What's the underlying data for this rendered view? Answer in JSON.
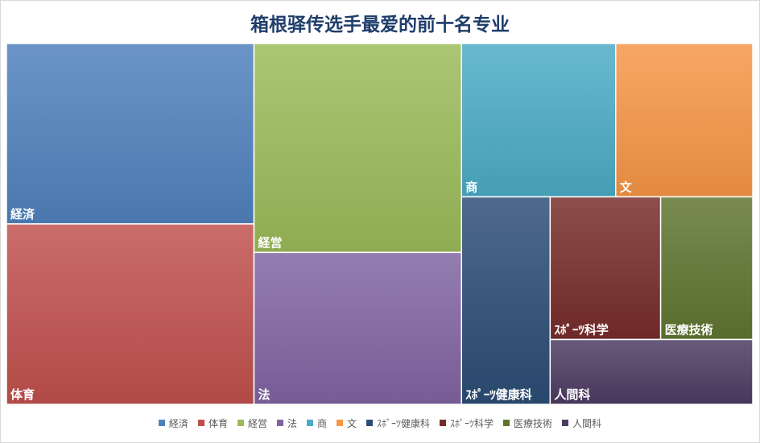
{
  "chart_data": {
    "type": "treemap",
    "title": "箱根驿传选手最爱的前十名专业",
    "categories": [
      "経済",
      "体育",
      "経営",
      "法",
      "商",
      "文",
      "ｽﾎﾟｰﾂ健康科",
      "ｽﾎﾟｰﾂ科学",
      "医療技術",
      "人間科"
    ],
    "values": [
      34,
      34,
      33,
      24,
      18,
      16,
      14,
      12,
      10,
      10
    ],
    "colors": [
      "#4f81bd",
      "#c0504d",
      "#9bbb59",
      "#8064a2",
      "#4bacc6",
      "#f79646",
      "#2c4d75",
      "#772c2a",
      "#5f7530",
      "#4d3b62"
    ],
    "legend": "bottom"
  }
}
